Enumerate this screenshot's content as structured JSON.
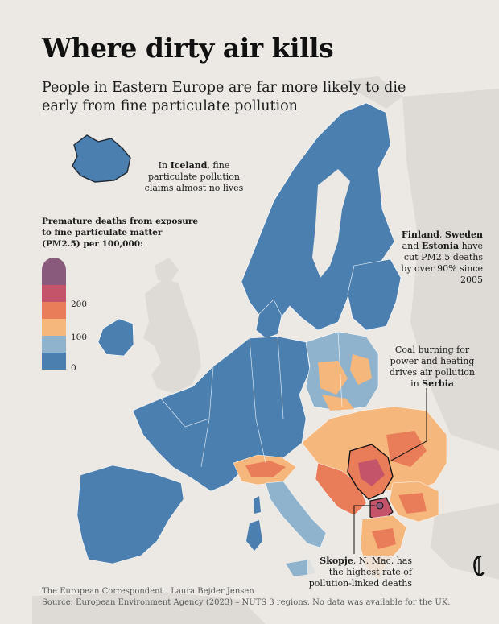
{
  "title": "Where dirty air kills",
  "subtitle": "People in Eastern Europe are far more likely to die early from fine particulate pollution",
  "annotations": {
    "iceland": {
      "prefix": "In ",
      "bold": "Iceland",
      "rest": ", fine particulate pollution claims almost no lives"
    },
    "nordic": {
      "bold1": "Finland",
      "sep1": ", ",
      "bold2": "Sweden",
      "sep2": " and ",
      "bold3": "Estonia",
      "rest": " have cut PM2.5 deaths by over 90% since 2005"
    },
    "serbia": {
      "text": "Coal burning for power and heating drives air pollution in ",
      "bold": "Serbia"
    },
    "skopje": {
      "bold": "Skopje",
      "rest": ", N. Mac, has the highest rate of pollution-linked deaths"
    }
  },
  "legend": {
    "title": "Premature deaths from exposure to fine particulate matter (PM2.5) per 100,000:",
    "labels": [
      "200",
      "100",
      "0"
    ],
    "colors": [
      "#8a5a7c",
      "#c4546a",
      "#e97d5a",
      "#f6b77c",
      "#8fb3cc",
      "#4a7fb0"
    ]
  },
  "palette": {
    "sea": "#ece9e4",
    "no_data_land": "#dedbd6",
    "low": "#4a7fb0",
    "low_mid": "#8fb3cc",
    "mid": "#f6b77c",
    "high": "#e97d5a",
    "very_high": "#c4546a",
    "highest": "#8a5a7c"
  },
  "footer": {
    "credit": "The European Correspondent | Laura Bejder Jensen",
    "source": "Source: European Environment Agency (2023) – NUTS 3 regions. No data was available for the UK."
  }
}
